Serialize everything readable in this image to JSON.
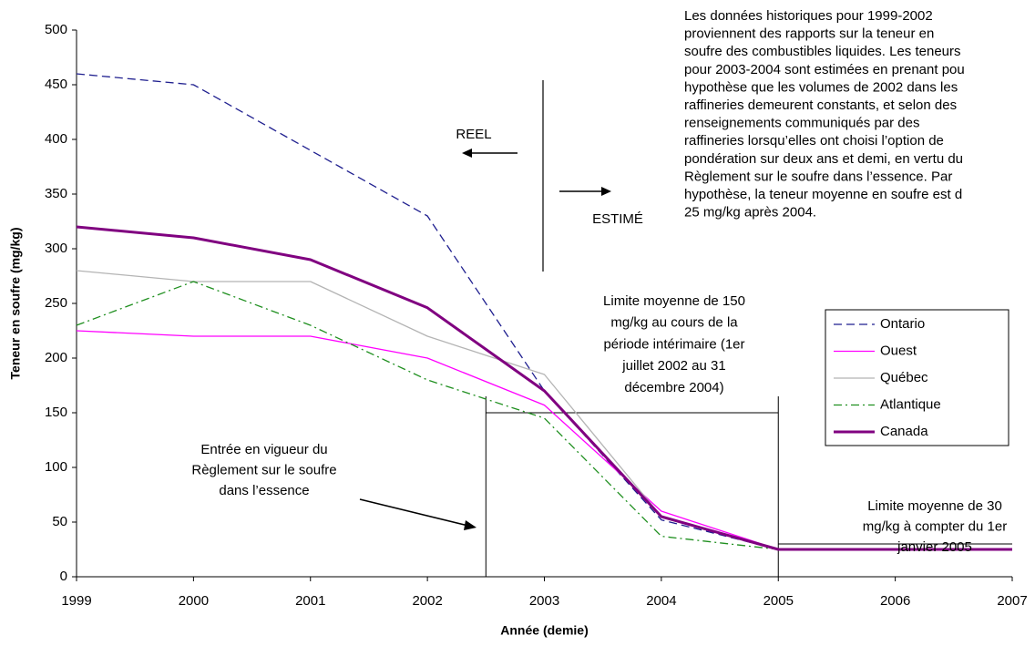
{
  "chart_data": {
    "type": "line",
    "x_label": "Année (demie)",
    "y_label": "Teneur en soufre (mg/kg)",
    "x": [
      1999,
      2000,
      2001,
      2002,
      2003,
      2004,
      2005,
      2006,
      2007
    ],
    "xlim": [
      1999,
      2007
    ],
    "xticks": [
      1999,
      2000,
      2001,
      2002,
      2003,
      2004,
      2005,
      2006,
      2007
    ],
    "ylim": [
      0,
      500
    ],
    "yticks": [
      0,
      50,
      100,
      150,
      200,
      250,
      300,
      350,
      400,
      450,
      500
    ],
    "series": [
      {
        "name": "Ontario",
        "color": "#1f1f8f",
        "dash": "9,5",
        "width": 1.3,
        "values": [
          460,
          450,
          390,
          330,
          170,
          52,
          25,
          25,
          25
        ]
      },
      {
        "name": "Ouest",
        "color": "#ff00ff",
        "dash": "none",
        "width": 1.3,
        "values": [
          225,
          220,
          220,
          200,
          157,
          60,
          25,
          25,
          25
        ]
      },
      {
        "name": "Québec",
        "color": "#b4b4b4",
        "dash": "none",
        "width": 1.3,
        "values": [
          280,
          270,
          270,
          220,
          185,
          55,
          25,
          25,
          25
        ]
      },
      {
        "name": "Atlantique",
        "color": "#1f8f1f",
        "dash": "9,4,2,4",
        "width": 1.3,
        "values": [
          230,
          270,
          230,
          180,
          145,
          37,
          25,
          25,
          25
        ]
      },
      {
        "name": "Canada",
        "color": "#800080",
        "dash": "none",
        "width": 3,
        "values": [
          320,
          310,
          290,
          246,
          170,
          55,
          25,
          25,
          25
        ]
      }
    ],
    "reference_lines": [
      {
        "value": 150,
        "x": [
          2002.5,
          2005
        ]
      },
      {
        "value": 30,
        "x": [
          2005,
          2007
        ]
      }
    ],
    "annotations": [
      {
        "lines": [
          "REEL"
        ]
      },
      {
        "lines": [
          "ESTIMÉ"
        ]
      },
      {
        "lines": [
          "Les données historiques pour 1999-2002",
          "proviennent des rapports sur la teneur en",
          "soufre des combustibles liquides. Les teneurs",
          "pour 2003-2004 sont estimées en prenant pou",
          "hypothèse que les volumes de 2002 dans les",
          "raffineries demeurent constants, et selon des",
          "renseignements communiqués par des",
          "raffineries lorsqu’elles ont choisi l’option de",
          "pondération sur deux ans et demi, en vertu du",
          "Règlement sur le soufre dans l’essence. Par",
          "hypothèse, la teneur moyenne en soufre est d",
          "25 mg/kg après 2004."
        ]
      },
      {
        "lines": [
          "Limite moyenne de 150",
          "mg/kg au cours de la",
          "période intérimaire (1er",
          "juillet 2002 au 31",
          "décembre 2004)"
        ]
      },
      {
        "lines": [
          "Entrée en vigueur du",
          "Règlement sur le soufre",
          "dans l’essence"
        ]
      },
      {
        "lines": [
          "Limite moyenne de 30",
          "mg/kg à compter du 1er",
          "janvier 2005"
        ]
      }
    ],
    "legend": "right"
  }
}
